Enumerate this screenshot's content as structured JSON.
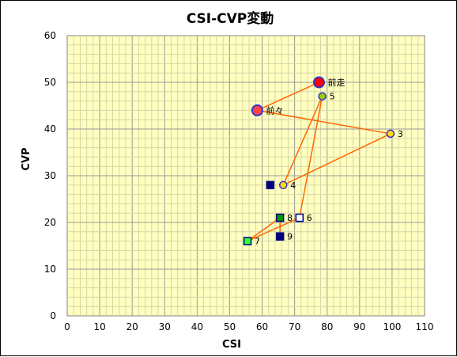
{
  "chart_data": {
    "type": "scatter",
    "title": "CSI-CVP変動",
    "xlabel": "CSI",
    "ylabel": "CVP",
    "xlim": [
      0,
      110
    ],
    "ylim": [
      0,
      60
    ],
    "x_ticks": [
      "0",
      "10",
      "20",
      "30",
      "40",
      "50",
      "60",
      "70",
      "80",
      "90",
      "100",
      "110"
    ],
    "y_ticks": [
      "0",
      "10",
      "20",
      "30",
      "40",
      "50",
      "60"
    ],
    "grid": true,
    "plot_background": "#FFFFC0",
    "line_color": "#FF6600",
    "connection_order": [
      "前走",
      "前々",
      "3",
      "4",
      "5",
      "6",
      "7",
      "8",
      "9"
    ],
    "points": [
      {
        "label": "前走",
        "x": 77.5,
        "y": 50,
        "shape": "circle",
        "fill": "#FF0000",
        "stroke": "#3333CC"
      },
      {
        "label": "前々",
        "x": 58.5,
        "y": 44,
        "shape": "circle",
        "fill": "#FF4444",
        "stroke": "#3333CC"
      },
      {
        "label": "3",
        "x": 99.5,
        "y": 39,
        "shape": "circle",
        "fill": "#FFDD00",
        "stroke": "#3333CC"
      },
      {
        "label": "4",
        "x": 66.5,
        "y": 28,
        "shape": "circle",
        "fill": "#FFDD00",
        "stroke": "#3333CC"
      },
      {
        "label": "5",
        "x": 78.5,
        "y": 47,
        "shape": "circle",
        "fill": "#99CC00",
        "stroke": "#3333CC"
      },
      {
        "label": "6",
        "x": 71.5,
        "y": 21,
        "shape": "square",
        "fill": "#FFFFFF",
        "stroke": "#000080"
      },
      {
        "label": "7",
        "x": 55.5,
        "y": 16,
        "shape": "square",
        "fill": "#33FF33",
        "stroke": "#000080"
      },
      {
        "label": "8",
        "x": 65.5,
        "y": 21,
        "shape": "square",
        "fill": "#009900",
        "stroke": "#000080"
      },
      {
        "label": "9",
        "x": 65.5,
        "y": 17,
        "shape": "square",
        "fill": "#000080",
        "stroke": "#000080"
      },
      {
        "label": "",
        "x": 62.5,
        "y": 28,
        "shape": "square",
        "fill": "#000080",
        "stroke": "#000080"
      }
    ]
  }
}
